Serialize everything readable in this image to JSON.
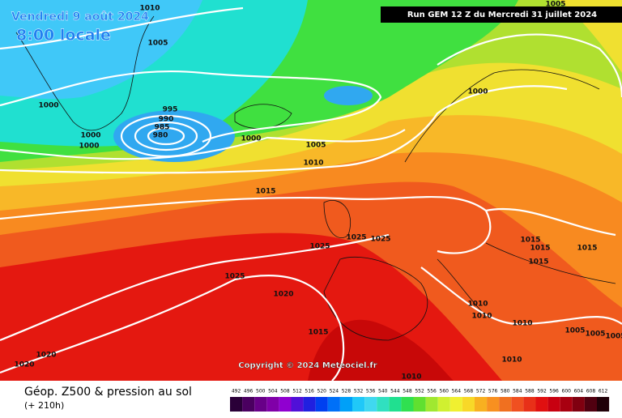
{
  "header": {
    "date": "Vendredi 9 août 2024",
    "time": "8:00 locale",
    "run": "Run GEM 12 Z du Mercredi 31 juillet 2024"
  },
  "map": {
    "copyright": "Copyright © 2024 Meteociel.fr",
    "isobar_labels": [
      1010,
      1005,
      1000,
      995,
      990,
      985,
      980,
      1000,
      1000,
      1000,
      1005,
      1010,
      1015,
      1025,
      1025,
      1025,
      1025,
      1020,
      1015,
      1020,
      1020,
      1015,
      1015,
      1015,
      1015,
      1010,
      1010,
      1010,
      1005,
      1005,
      1005,
      1010,
      1010,
      1005,
      1000
    ]
  },
  "footer": {
    "title": "Géop. Z500 & pression au sol",
    "lead": "(+ 210h)",
    "scale": {
      "ticks": [
        492,
        496,
        500,
        504,
        508,
        512,
        516,
        520,
        524,
        528,
        532,
        536,
        540,
        544,
        548,
        552,
        556,
        560,
        564,
        568,
        572,
        576,
        580,
        584,
        588,
        592,
        596,
        600,
        604,
        608,
        612
      ],
      "colors": [
        "#2a0038",
        "#4a0060",
        "#680088",
        "#8000a8",
        "#9000d0",
        "#5010d8",
        "#2020e0",
        "#0040f0",
        "#0070f8",
        "#00a0f8",
        "#20c8f8",
        "#40d8f0",
        "#30e0c0",
        "#20e090",
        "#30e050",
        "#60e030",
        "#a0e830",
        "#d0f030",
        "#f0f030",
        "#f8d828",
        "#f8b020",
        "#f89020",
        "#f07020",
        "#f05020",
        "#e83018",
        "#e01010",
        "#c80010",
        "#a80010",
        "#800010",
        "#500010",
        "#200008"
      ]
    }
  }
}
